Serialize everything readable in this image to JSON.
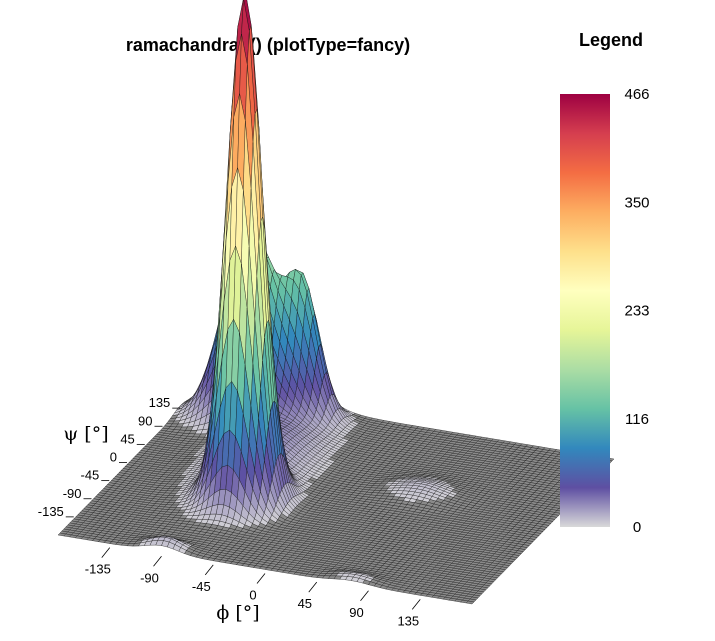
{
  "chart_data": {
    "type": "surface",
    "title": "ramachandran() (plotType=fancy)",
    "xlabel": "ϕ [°]",
    "ylabel": "ψ [°]",
    "x_ticks": [
      "-135",
      "-90",
      "-45",
      "0",
      "45",
      "90",
      "135"
    ],
    "y_ticks": [
      "-135",
      "-90",
      "-45",
      "0",
      "45",
      "90",
      "135"
    ],
    "xlim": [
      -180,
      180
    ],
    "ylim": [
      -180,
      180
    ],
    "zlim": [
      0,
      466
    ],
    "colorscale": "Spectral",
    "peaks": [
      {
        "phi": -65,
        "psi": -42,
        "height": 466
      },
      {
        "phi": -120,
        "psi": 130,
        "height": 175
      },
      {
        "phi": -80,
        "psi": 150,
        "height": 110
      },
      {
        "phi": 60,
        "psi": 40,
        "height": 8
      },
      {
        "phi": 75,
        "psi": -170,
        "height": 5
      },
      {
        "phi": -90,
        "psi": -170,
        "height": 10
      }
    ]
  },
  "legend": {
    "title": "Legend",
    "ticks": [
      "466",
      "350",
      "233",
      "116",
      "0"
    ],
    "colors": [
      "#9e0142",
      "#d53e4f",
      "#f46d43",
      "#fdae61",
      "#fee08b",
      "#ffffbf",
      "#e6f598",
      "#abdda4",
      "#66c2a5",
      "#3288bd",
      "#5e4fa2",
      "#d9d9d9"
    ]
  }
}
